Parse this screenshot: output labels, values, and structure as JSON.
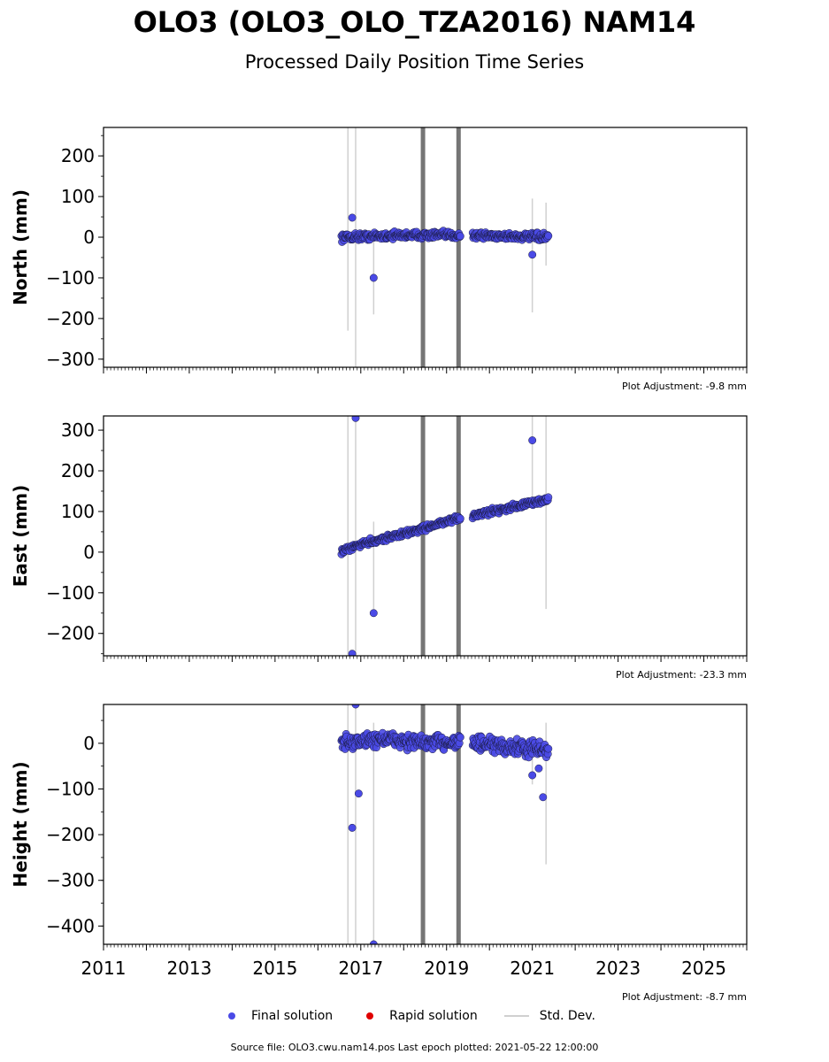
{
  "title": "OLO3 (OLO3_OLO_TZA2016) NAM14",
  "subtitle": "Processed Daily Position Time Series",
  "footer": "Source file: OLO3.cwu.nam14.pos  Last epoch plotted: 2021-05-22 12:00:00",
  "legend": {
    "final": "Final solution",
    "rapid": "Rapid solution",
    "std": "Std. Dev."
  },
  "colors": {
    "final": "#4a4ae6",
    "rapid": "#e00000",
    "std": "#d0d0d0",
    "event_line": "#666666"
  },
  "chart_data": [
    {
      "type": "scatter",
      "ylabel": "North (mm)",
      "adjustment": "Plot Adjustment: -9.8 mm",
      "xlim": [
        2011,
        2026
      ],
      "ylim": [
        -320,
        270
      ],
      "yticks": [
        200,
        100,
        0,
        -100,
        -200,
        -300
      ],
      "ytick_labels": [
        "200",
        "100",
        "0",
        "−100",
        "−200",
        "−300"
      ],
      "event_lines": [
        2018.45,
        2019.28
      ],
      "data_span": [
        2016.55,
        2021.38
      ],
      "noise": 6,
      "trend": [
        [
          2016.55,
          0
        ],
        [
          2018.0,
          5
        ],
        [
          2019.5,
          5
        ],
        [
          2021.38,
          0
        ]
      ],
      "gap": [
        2019.33,
        2019.6
      ],
      "outliers": [
        [
          2016.8,
          48
        ],
        [
          2017.3,
          -100
        ],
        [
          2021.0,
          -43
        ]
      ],
      "std_lines": [
        [
          2016.7,
          -230,
          270
        ],
        [
          2016.88,
          -320,
          270
        ],
        [
          2017.3,
          -190,
          10
        ],
        [
          2021.0,
          -185,
          95
        ],
        [
          2021.32,
          -70,
          85
        ]
      ]
    },
    {
      "type": "scatter",
      "ylabel": "East (mm)",
      "adjustment": "Plot Adjustment: -23.3 mm",
      "xlim": [
        2011,
        2026
      ],
      "ylim": [
        -255,
        335
      ],
      "yticks": [
        300,
        200,
        100,
        0,
        -100,
        -200
      ],
      "ytick_labels": [
        "300",
        "200",
        "100",
        "0",
        "−100",
        "−200"
      ],
      "event_lines": [
        2018.45,
        2019.28
      ],
      "data_span": [
        2016.55,
        2021.38
      ],
      "noise": 5,
      "trend": [
        [
          2016.55,
          0
        ],
        [
          2017.0,
          20
        ],
        [
          2018.0,
          45
        ],
        [
          2019.0,
          75
        ],
        [
          2019.6,
          90
        ],
        [
          2020.5,
          110
        ],
        [
          2021.38,
          130
        ]
      ],
      "gap": [
        2019.33,
        2019.6
      ],
      "outliers": [
        [
          2016.88,
          330
        ],
        [
          2017.3,
          -150
        ],
        [
          2016.8,
          -250
        ],
        [
          2021.0,
          275
        ]
      ],
      "std_lines": [
        [
          2016.7,
          -255,
          335
        ],
        [
          2016.88,
          -255,
          335
        ],
        [
          2017.3,
          -140,
          75
        ],
        [
          2021.0,
          110,
          335
        ],
        [
          2021.32,
          -140,
          335
        ]
      ]
    },
    {
      "type": "scatter",
      "ylabel": "Height (mm)",
      "adjustment": "Plot Adjustment: -8.7 mm",
      "xlim": [
        2011,
        2026
      ],
      "ylim": [
        -440,
        85
      ],
      "yticks": [
        0,
        -100,
        -200,
        -300,
        -400
      ],
      "ytick_labels": [
        "0",
        "−100",
        "−200",
        "−300",
        "−400"
      ],
      "xticks": [
        2011,
        2013,
        2015,
        2017,
        2019,
        2021,
        2023,
        2025
      ],
      "xtick_labels": [
        "2011",
        "2013",
        "2015",
        "2017",
        "2019",
        "2021",
        "2023",
        "2025"
      ],
      "event_lines": [
        2018.45,
        2019.28
      ],
      "data_span": [
        2016.55,
        2021.38
      ],
      "noise": 12,
      "trend": [
        [
          2016.55,
          0
        ],
        [
          2017.5,
          10
        ],
        [
          2018.5,
          0
        ],
        [
          2019.3,
          5
        ],
        [
          2020.0,
          -5
        ],
        [
          2021.38,
          -15
        ]
      ],
      "gap": [
        2019.33,
        2019.6
      ],
      "outliers": [
        [
          2016.88,
          85
        ],
        [
          2016.8,
          -185
        ],
        [
          2016.95,
          -110
        ],
        [
          2017.3,
          -440
        ],
        [
          2021.0,
          -70
        ],
        [
          2021.25,
          -118
        ],
        [
          2021.15,
          -55
        ]
      ],
      "std_lines": [
        [
          2016.7,
          -440,
          85
        ],
        [
          2016.88,
          -440,
          85
        ],
        [
          2017.3,
          -440,
          45
        ],
        [
          2021.0,
          -90,
          10
        ],
        [
          2021.32,
          -265,
          45
        ]
      ]
    }
  ]
}
